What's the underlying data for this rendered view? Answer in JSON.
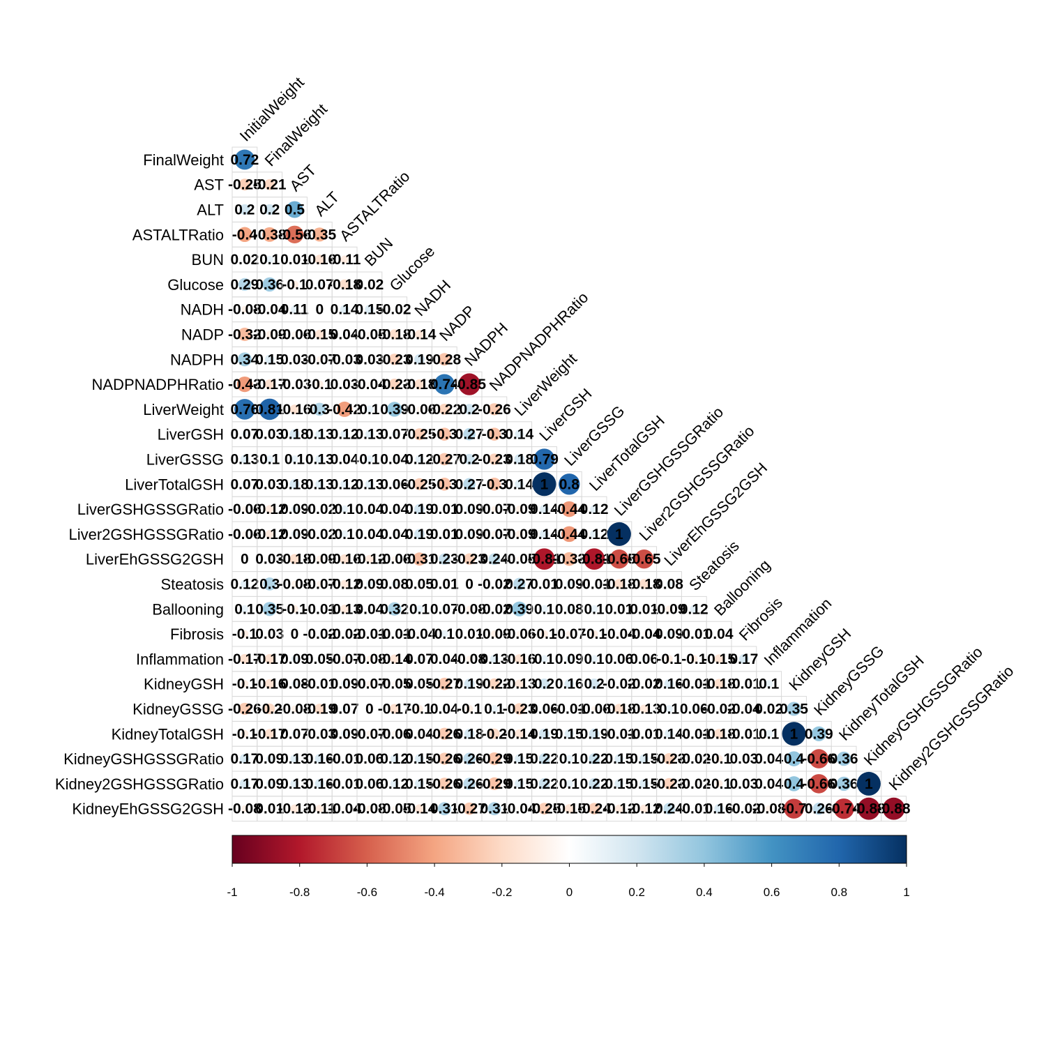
{
  "chart_data": {
    "type": "heatmap",
    "variables": [
      "InitialWeight",
      "FinalWeight",
      "AST",
      "ALT",
      "ASTALTRatio",
      "BUN",
      "Glucose",
      "NADH",
      "NADP",
      "NADPH",
      "NADPNADPHRatio",
      "LiverWeight",
      "LiverGSH",
      "LiverGSSG",
      "LiverTotalGSH",
      "LiverGSHGSSGRatio",
      "Liver2GSHGSSGRatio",
      "LiverEhGSSG2GSH",
      "Steatosis",
      "Ballooning",
      "Fibrosis",
      "Inflammation",
      "KidneyGSH",
      "KidneyGSSG",
      "KidneyTotalGSH",
      "KidneyGSHGSSGRatio",
      "Kidney2GSHGSSGRatio",
      "KidneyEhGSSG2GSH"
    ],
    "matrix": [
      [
        0.72
      ],
      [
        -0.25,
        -0.21
      ],
      [
        0.2,
        0.2,
        0.5
      ],
      [
        -0.4,
        -0.38,
        -0.56,
        -0.35
      ],
      [
        0.02,
        0.1,
        0.01,
        -0.16,
        -0.11
      ],
      [
        0.29,
        0.36,
        -0.1,
        0.07,
        -0.18,
        0.02
      ],
      [
        -0.08,
        -0.04,
        0.11,
        0,
        0.14,
        0.15,
        -0.02
      ],
      [
        -0.32,
        -0.09,
        -0.06,
        -0.15,
        0.04,
        -0.05,
        -0.18,
        -0.14
      ],
      [
        0.34,
        0.15,
        0.03,
        -0.07,
        -0.03,
        0.03,
        -0.23,
        0.19,
        -0.28
      ],
      [
        -0.43,
        -0.17,
        -0.03,
        -0.1,
        0.03,
        -0.04,
        -0.23,
        -0.18,
        0.74,
        -0.85
      ],
      [
        0.76,
        0.81,
        -0.16,
        0.3,
        -0.42,
        0.1,
        0.39,
        -0.06,
        -0.22,
        0.2,
        -0.26
      ],
      [
        0.07,
        0.03,
        0.18,
        0.13,
        0.12,
        0.13,
        0.07,
        -0.25,
        -0.3,
        0.27,
        -0.3,
        0.14
      ],
      [
        0.13,
        0.1,
        0.1,
        0.13,
        0.04,
        0.1,
        0.04,
        0.12,
        -0.27,
        0.2,
        -0.23,
        0.18,
        0.79
      ],
      [
        0.07,
        0.03,
        0.18,
        0.13,
        0.12,
        0.13,
        0.06,
        -0.25,
        -0.3,
        0.27,
        -0.3,
        0.14,
        1,
        0.8
      ],
      [
        -0.06,
        -0.12,
        0.09,
        -0.02,
        0.1,
        0.04,
        0.04,
        0.19,
        0.01,
        0.09,
        -0.07,
        -0.09,
        0.14,
        -0.44,
        0.12
      ],
      [
        -0.06,
        -0.12,
        0.09,
        -0.02,
        0.1,
        0.04,
        0.04,
        0.19,
        0.01,
        0.09,
        -0.07,
        -0.09,
        0.14,
        -0.44,
        0.12,
        1
      ],
      [
        0,
        0.03,
        -0.18,
        -0.09,
        -0.16,
        -0.12,
        -0.06,
        -0.31,
        0.23,
        -0.23,
        0.24,
        -0.05,
        -0.81,
        -0.33,
        -0.81,
        -0.65,
        -0.65
      ],
      [
        0.12,
        0.3,
        -0.08,
        -0.07,
        -0.12,
        0.09,
        0.08,
        0.05,
        0.01,
        0,
        -0.02,
        0.27,
        0.01,
        0.09,
        -0.01,
        -0.18,
        -0.18,
        0.08
      ],
      [
        0.1,
        0.35,
        -0.1,
        -0.01,
        -0.13,
        0.04,
        0.32,
        0.1,
        0.07,
        -0.08,
        -0.02,
        0.39,
        0.1,
        0.08,
        0.1,
        0.01,
        0.01,
        -0.09,
        0.12
      ],
      [
        -0.1,
        0.03,
        0,
        -0.02,
        -0.02,
        -0.01,
        -0.01,
        -0.04,
        0.1,
        0.01,
        -0.09,
        -0.06,
        -0.1,
        -0.07,
        -0.1,
        -0.04,
        -0.04,
        0.09,
        -0.01,
        0.04
      ],
      [
        -0.17,
        -0.17,
        0.09,
        0.05,
        -0.07,
        -0.08,
        -0.14,
        0.07,
        0.04,
        -0.08,
        0.13,
        -0.16,
        0.1,
        0.09,
        0.1,
        0.06,
        0.06,
        -0.1,
        -0.1,
        -0.15,
        0.17
      ],
      [
        -0.1,
        -0.16,
        0.08,
        -0.01,
        0.09,
        -0.07,
        -0.05,
        0.05,
        -0.27,
        0.19,
        -0.22,
        -0.13,
        0.2,
        0.16,
        0.2,
        -0.02,
        -0.02,
        0.16,
        -0.01,
        -0.18,
        -0.01,
        0.1
      ],
      [
        -0.26,
        -0.2,
        -0.08,
        -0.19,
        0.07,
        0,
        -0.17,
        -0.1,
        0.04,
        -0.1,
        0.1,
        -0.23,
        0.06,
        -0.01,
        -0.06,
        -0.18,
        -0.13,
        0.1,
        0.06,
        -0.02,
        -0.04,
        0.02,
        0.35
      ],
      [
        -0.1,
        -0.17,
        0.07,
        -0.03,
        0.09,
        -0.07,
        -0.06,
        0.04,
        -0.26,
        0.18,
        -0.2,
        -0.14,
        0.19,
        0.15,
        0.19,
        -0.01,
        -0.01,
        0.14,
        -0.01,
        -0.18,
        -0.01,
        0.1,
        1,
        0.39
      ],
      [
        0.17,
        0.09,
        0.13,
        0.16,
        -0.01,
        0.06,
        0.12,
        0.15,
        -0.26,
        0.26,
        -0.29,
        0.15,
        0.22,
        0.1,
        0.22,
        0.15,
        0.15,
        -0.23,
        -0.02,
        -0.1,
        0.03,
        0.04,
        0.4,
        -0.66,
        0.36
      ],
      [
        0.17,
        0.09,
        0.13,
        0.16,
        -0.01,
        0.06,
        0.12,
        0.15,
        -0.26,
        0.26,
        -0.29,
        0.15,
        0.22,
        0.1,
        0.22,
        0.15,
        0.15,
        -0.23,
        -0.02,
        -0.1,
        0.03,
        0.04,
        0.4,
        -0.66,
        0.36,
        1
      ],
      [
        -0.08,
        0.01,
        -0.13,
        -0.11,
        -0.04,
        -0.08,
        -0.05,
        -0.14,
        0.31,
        -0.27,
        0.31,
        -0.04,
        -0.25,
        -0.15,
        -0.24,
        -0.12,
        -0.12,
        0.24,
        -0.01,
        0.16,
        -0.02,
        -0.08,
        -0.7,
        0.26,
        -0.74,
        -0.88,
        -0.88
      ]
    ],
    "colorbar_ticks": [
      "-1",
      "-0.8",
      "-0.6",
      "-0.4",
      "-0.2",
      "0",
      "0.2",
      "0.4",
      "0.6",
      "0.8",
      "1"
    ],
    "value_range": [
      -1,
      1
    ],
    "colors": {
      "scale": [
        "#67001F",
        "#B2182B",
        "#D6604D",
        "#F4A582",
        "#FDDBC7",
        "#FFFFFF",
        "#D1E5F0",
        "#92C5DE",
        "#4393C3",
        "#2166AC",
        "#053061"
      ],
      "grid": "#d9d9d9",
      "text": "#000000"
    },
    "layout": "lower triangle, circles sized by |r|, coefficients printed on each cell, colorbar at bottom"
  }
}
